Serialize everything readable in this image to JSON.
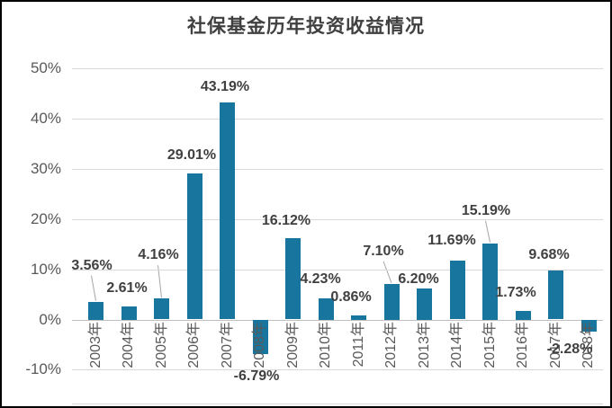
{
  "title": "社保基金历年投资收益情况",
  "colors": {
    "bar": "#17759E",
    "title_text": "#404040",
    "data_label_text": "#404040",
    "axis_tick_text": "#595959",
    "gridline": "#D9D9D9",
    "axis_line": "#BFBFBF",
    "leader_line": "#A6A6A6",
    "frame_border": "#000000",
    "background": "#FFFFFF"
  },
  "chart_data": {
    "type": "bar",
    "title": "社保基金历年投资收益情况",
    "categories": [
      "2003年",
      "2004年",
      "2005年",
      "2006年",
      "2007年",
      "2008年",
      "2009年",
      "2010年",
      "2011年",
      "2012年",
      "2013年",
      "2014年",
      "2015年",
      "2016年",
      "2017年",
      "2018年"
    ],
    "values": [
      3.56,
      2.61,
      4.16,
      29.01,
      43.19,
      -6.79,
      16.12,
      4.23,
      0.86,
      7.1,
      6.2,
      11.69,
      15.19,
      1.73,
      9.68,
      -2.28
    ],
    "labels": [
      "3.56%",
      "2.61%",
      "4.16%",
      "29.01%",
      "43.19%",
      "-6.79%",
      "16.12%",
      "4.23%",
      "0.86%",
      "7.10%",
      "6.20%",
      "11.69%",
      "15.19%",
      "1.73%",
      "9.68%",
      "-2.28%"
    ],
    "unit": "%",
    "xlabel": "",
    "ylabel": "",
    "ylim": [
      -10,
      50
    ],
    "yticks": [
      "50%",
      "40%",
      "30%",
      "20%",
      "10%",
      "0%",
      "-10%"
    ],
    "ytick_values": [
      50,
      40,
      30,
      20,
      10,
      0,
      -10
    ],
    "grid": "horizontal",
    "legend": "none",
    "label_layout": {
      "dx": [
        -5,
        -2,
        -4,
        -3,
        -3,
        -4,
        -8,
        -6,
        -9,
        -9,
        -7,
        -6,
        -5,
        -8,
        -8,
        -21
      ],
      "dy": [
        -26,
        -6,
        -34,
        -6,
        -3,
        14,
        -5,
        -7,
        -6,
        -22,
        4,
        -8,
        -22,
        -6,
        -3,
        9
      ],
      "leader_indices": [
        0,
        2,
        9,
        12
      ]
    }
  }
}
